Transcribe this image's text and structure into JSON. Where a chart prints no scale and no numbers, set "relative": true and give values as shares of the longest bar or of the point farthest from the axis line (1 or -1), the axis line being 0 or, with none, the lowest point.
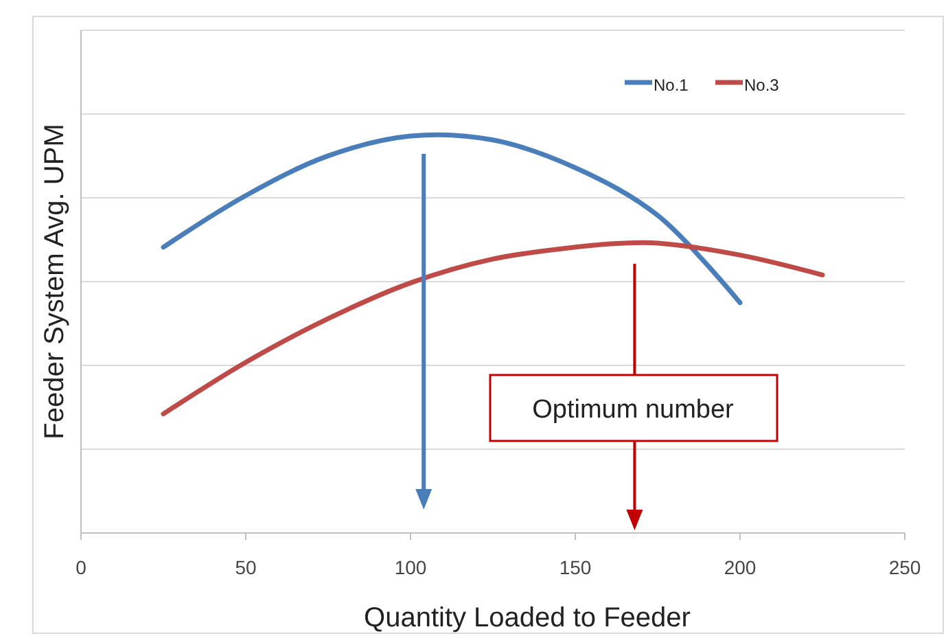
{
  "chart_data": {
    "type": "line",
    "relative": true,
    "xlabel": "Quantity Loaded to Feeder",
    "ylabel": "Feeder System Avg. UPM",
    "xlim": [
      0,
      250
    ],
    "xticks": [
      0,
      50,
      100,
      150,
      200,
      250
    ],
    "grid": "y",
    "legend": "top right",
    "line_style": "solid",
    "annotations": [
      "Optimum number"
    ],
    "series": [
      {
        "name": "No.1",
        "color": "#4a7ebb",
        "x": [
          25,
          50,
          75,
          100,
          125,
          150,
          175,
          200
        ],
        "values": [
          0.72,
          0.85,
          0.95,
          1.0,
          0.99,
          0.92,
          0.8,
          0.58
        ]
      },
      {
        "name": "No.3",
        "color": "#be4b48",
        "x": [
          25,
          50,
          75,
          100,
          125,
          150,
          165,
          175,
          200,
          225
        ],
        "values": [
          0.3,
          0.43,
          0.54,
          0.63,
          0.69,
          0.72,
          0.73,
          0.73,
          0.7,
          0.65
        ]
      }
    ]
  }
}
